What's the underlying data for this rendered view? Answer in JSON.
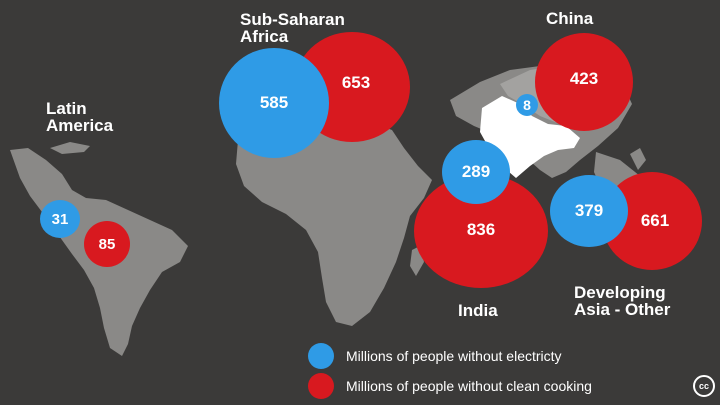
{
  "colors": {
    "background": "#3b3a39",
    "land": "#8a8987",
    "highlight_land": "#ffffff",
    "electricity": "#2f9be6",
    "cooking": "#d8191f"
  },
  "regions": [
    {
      "id": "latin-america",
      "label": "Latin\nAmerica",
      "without_electricity": "31",
      "without_clean_cooking": "85"
    },
    {
      "id": "sub-saharan-africa",
      "label": "Sub-Saharan\nAfrica",
      "without_electricity": "585",
      "without_clean_cooking": "653"
    },
    {
      "id": "china",
      "label": "China",
      "without_electricity": "8",
      "without_clean_cooking": "423"
    },
    {
      "id": "india",
      "label": "India",
      "without_electricity": "289",
      "without_clean_cooking": "836"
    },
    {
      "id": "developing-asia-other",
      "label": "Developing\nAsia - Other",
      "without_electricity": "379",
      "without_clean_cooking": "661"
    }
  ],
  "legend": {
    "electricity": "Millions of people without electricty",
    "cooking": "Millions of people without clean cooking"
  },
  "license_icon": "creative-commons-icon",
  "license_text": "cc"
}
